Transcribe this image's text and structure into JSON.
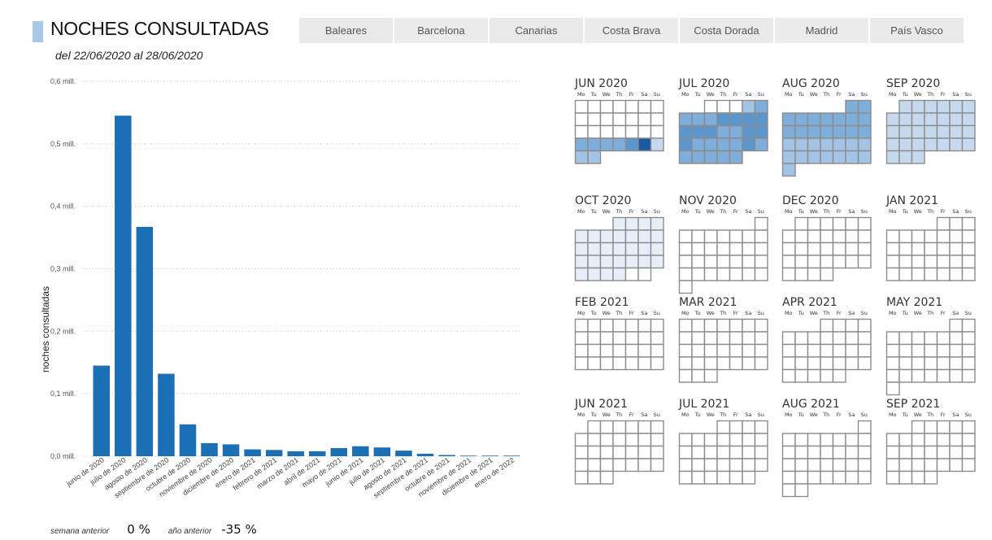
{
  "header": {
    "title": "NOCHES CONSULTADAS",
    "subtitle": "del 22/06/2020 al 28/06/2020",
    "accent_color": "#a9c8e6"
  },
  "tabs": [
    "Baleares",
    "Barcelona",
    "Canarias",
    "Costa Brava",
    "Costa Dorada",
    "Madrid",
    "País Vasco"
  ],
  "footer": {
    "prev_week_label": "semana anterior",
    "prev_week_value": "0 %",
    "prev_year_label": "año anterior",
    "prev_year_value": "-35 %"
  },
  "chart_data": {
    "type": "bar",
    "title": "",
    "xlabel": "",
    "ylabel": "noches consultadas",
    "ylim": [
      0,
      0.6
    ],
    "yticks": [
      0,
      0.1,
      0.2,
      0.3,
      0.4,
      0.5,
      0.6
    ],
    "ytick_labels": [
      "0,0 mill.",
      "0,1 mill.",
      "0,2 mill.",
      "0,3 mill.",
      "0,4 mill.",
      "0,5 mill.",
      "0,6 mill."
    ],
    "grid": true,
    "bar_color": "#1a6fb5",
    "categories": [
      "junio de 2020",
      "julio de 2020",
      "agosto de 2020",
      "septiembre de 2020",
      "octubre de 2020",
      "noviembre de 2020",
      "diciembre de 2020",
      "enero de 2021",
      "febrero de 2021",
      "marzo de 2021",
      "abril de 2021",
      "mayo de 2021",
      "junio de 2021",
      "julio de 2021",
      "agosto de 2021",
      "septiembre de 2021",
      "octubre de 2021",
      "noviembre de 2021",
      "diciembre de 2021",
      "enero de 2022"
    ],
    "values": [
      0.145,
      0.545,
      0.367,
      0.132,
      0.051,
      0.021,
      0.019,
      0.011,
      0.01,
      0.008,
      0.008,
      0.013,
      0.016,
      0.014,
      0.009,
      0.004,
      0.002,
      0.001,
      0.001,
      0.001
    ]
  },
  "calendar": {
    "weekday_labels": [
      "Mo",
      "Tu",
      "We",
      "Th",
      "Fr",
      "Sa",
      "Su"
    ],
    "color_scale": [
      "#ffffff",
      "#e6eff8",
      "#c5daef",
      "#a3c4e5",
      "#7eaed9",
      "#5b96cc",
      "#2f76bb",
      "#1a5aa5"
    ],
    "months": [
      {
        "label": "JUN 2020",
        "start": 0,
        "days": 30,
        "level": [
          0,
          0,
          0,
          0,
          0,
          0,
          0,
          0,
          0,
          0,
          0,
          0,
          0,
          0,
          0,
          0,
          0,
          0,
          0,
          0,
          0,
          4,
          4,
          4,
          4,
          5,
          7,
          2,
          3,
          3
        ]
      },
      {
        "label": "JUL 2020",
        "start": 2,
        "days": 31,
        "level": [
          0,
          0,
          0,
          3,
          4,
          4,
          4,
          4,
          5,
          5,
          5,
          5,
          5,
          5,
          5,
          4,
          4,
          5,
          5,
          5,
          4,
          4,
          4,
          4,
          5,
          4,
          4,
          4,
          4,
          4,
          4
        ]
      },
      {
        "label": "AUG 2020",
        "start": 5,
        "days": 31,
        "level": [
          4,
          4,
          4,
          4,
          4,
          4,
          4,
          4,
          4,
          4,
          4,
          4,
          4,
          4,
          4,
          4,
          3,
          3,
          3,
          3,
          3,
          3,
          3,
          3,
          3,
          3,
          3,
          3,
          3,
          3,
          3
        ]
      },
      {
        "label": "SEP 2020",
        "start": 1,
        "days": 30,
        "level": [
          2,
          2,
          2,
          2,
          2,
          2,
          2,
          2,
          2,
          2,
          2,
          2,
          2,
          2,
          2,
          2,
          2,
          2,
          2,
          2,
          2,
          2,
          2,
          2,
          2,
          2,
          2,
          2,
          2,
          2
        ]
      },
      {
        "label": "OCT 2020",
        "start": 3,
        "days": 31,
        "level": [
          1,
          1,
          1,
          1,
          1,
          1,
          1,
          1,
          1,
          1,
          1,
          1,
          1,
          1,
          1,
          1,
          1,
          1,
          1,
          1,
          1,
          1,
          1,
          1,
          1,
          1,
          1,
          1,
          1,
          0,
          0
        ]
      },
      {
        "label": "NOV 2020",
        "start": 6,
        "days": 30,
        "level": []
      },
      {
        "label": "DEC 2020",
        "start": 1,
        "days": 31,
        "level": []
      },
      {
        "label": "JAN 2021",
        "start": 4,
        "days": 31,
        "level": []
      },
      {
        "label": "FEB 2021",
        "start": 0,
        "days": 28,
        "level": []
      },
      {
        "label": "MAR 2021",
        "start": 0,
        "days": 31,
        "level": []
      },
      {
        "label": "APR 2021",
        "start": 3,
        "days": 30,
        "level": []
      },
      {
        "label": "MAY 2021",
        "start": 5,
        "days": 31,
        "level": []
      },
      {
        "label": "JUN 2021",
        "start": 1,
        "days": 30,
        "level": []
      },
      {
        "label": "JUL 2021",
        "start": 3,
        "days": 31,
        "level": []
      },
      {
        "label": "AUG 2021",
        "start": 6,
        "days": 31,
        "level": []
      },
      {
        "label": "SEP 2021",
        "start": 2,
        "days": 30,
        "level": []
      }
    ]
  }
}
